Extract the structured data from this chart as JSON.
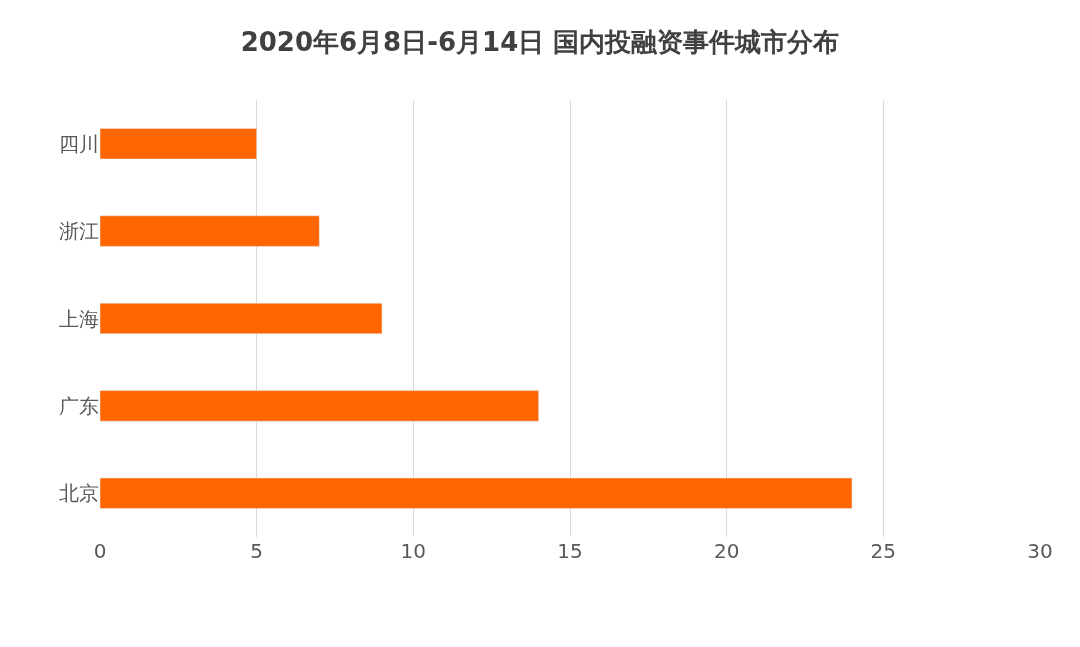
{
  "chart_data": {
    "type": "bar",
    "title": "2020年6月8日-6月14日 国内投融资事件城市分布",
    "orientation": "horizontal",
    "categories": [
      "四川",
      "浙江",
      "上海",
      "广东",
      "北京"
    ],
    "values": [
      5,
      7,
      9,
      14,
      24
    ],
    "color": "#ff6600",
    "xlim": [
      0,
      30
    ],
    "xticks": [
      0,
      5,
      10,
      15,
      20,
      25,
      30
    ],
    "grid": "x"
  }
}
